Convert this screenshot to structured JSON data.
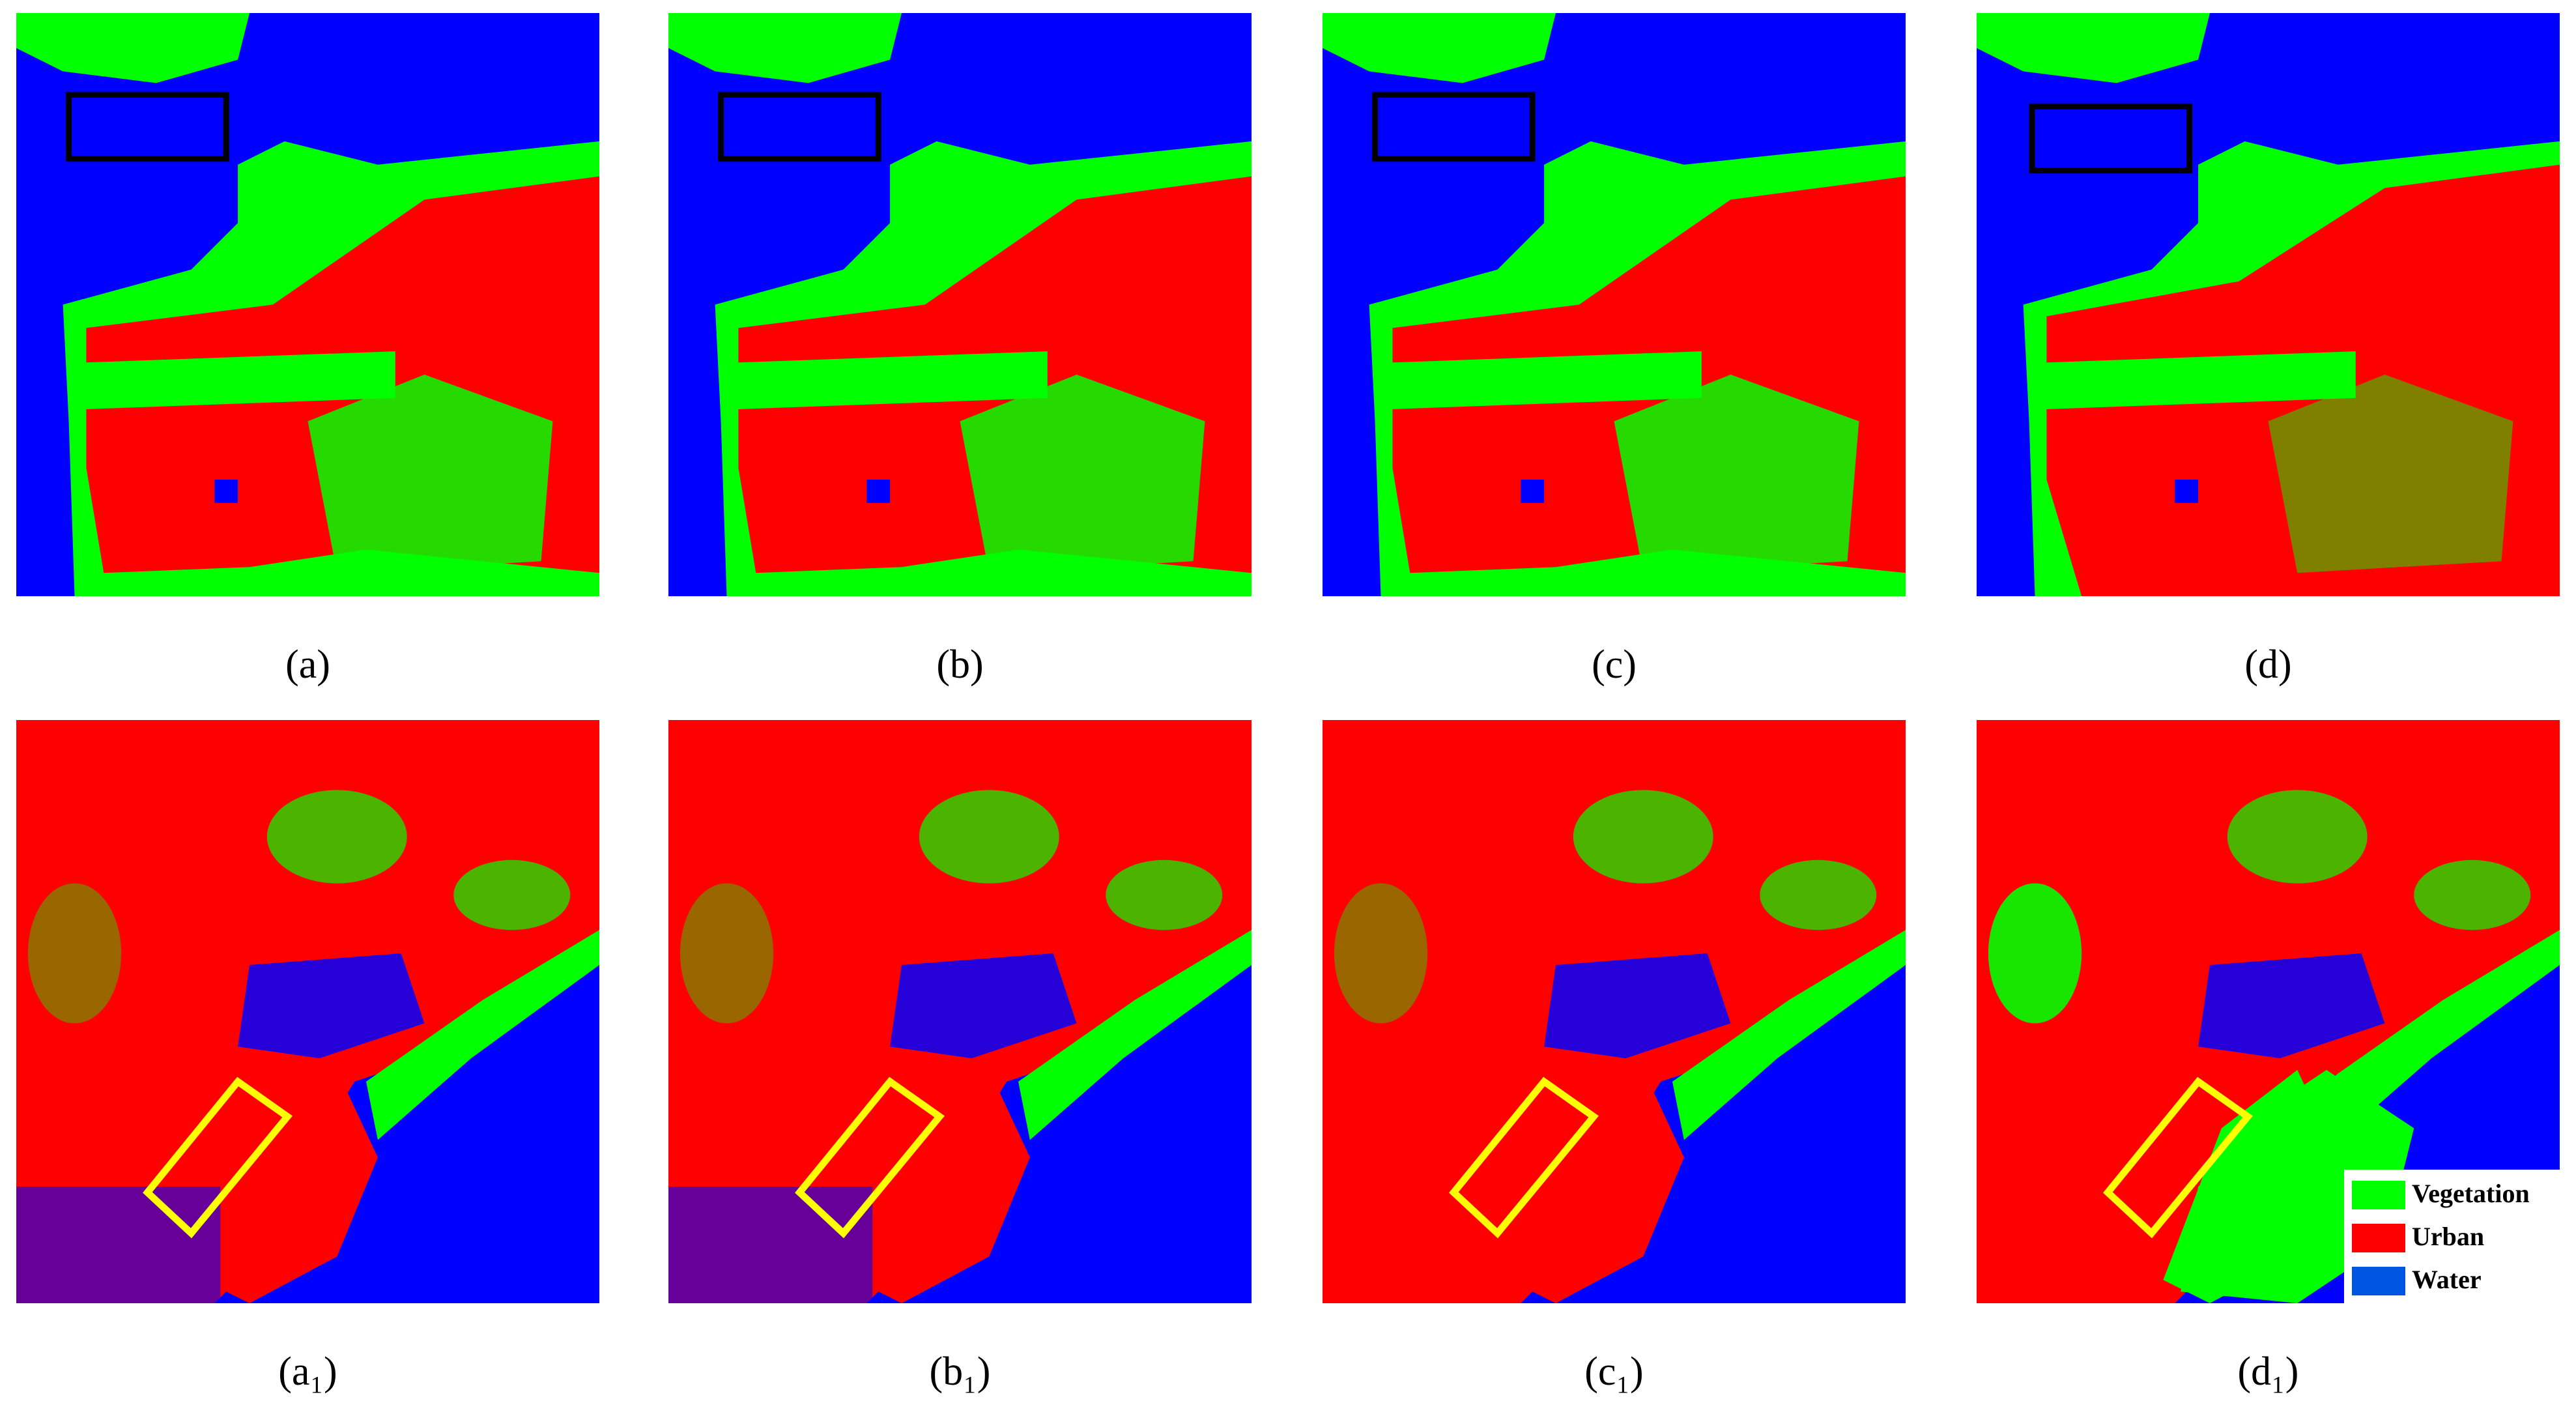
{
  "panels": [
    {
      "label": "(a)"
    },
    {
      "label": "(b)"
    },
    {
      "label": "(c)"
    },
    {
      "label": "(d)"
    },
    {
      "label": "(a₁)"
    },
    {
      "label": "(b₁)"
    },
    {
      "label": "(c₁)"
    },
    {
      "label": "(d₁)"
    }
  ],
  "legend": [
    {
      "label": "Vegetation",
      "color": "#00ff00"
    },
    {
      "label": "Urban",
      "color": "#ff0000"
    },
    {
      "label": "Water",
      "color": "#0055e0"
    }
  ]
}
